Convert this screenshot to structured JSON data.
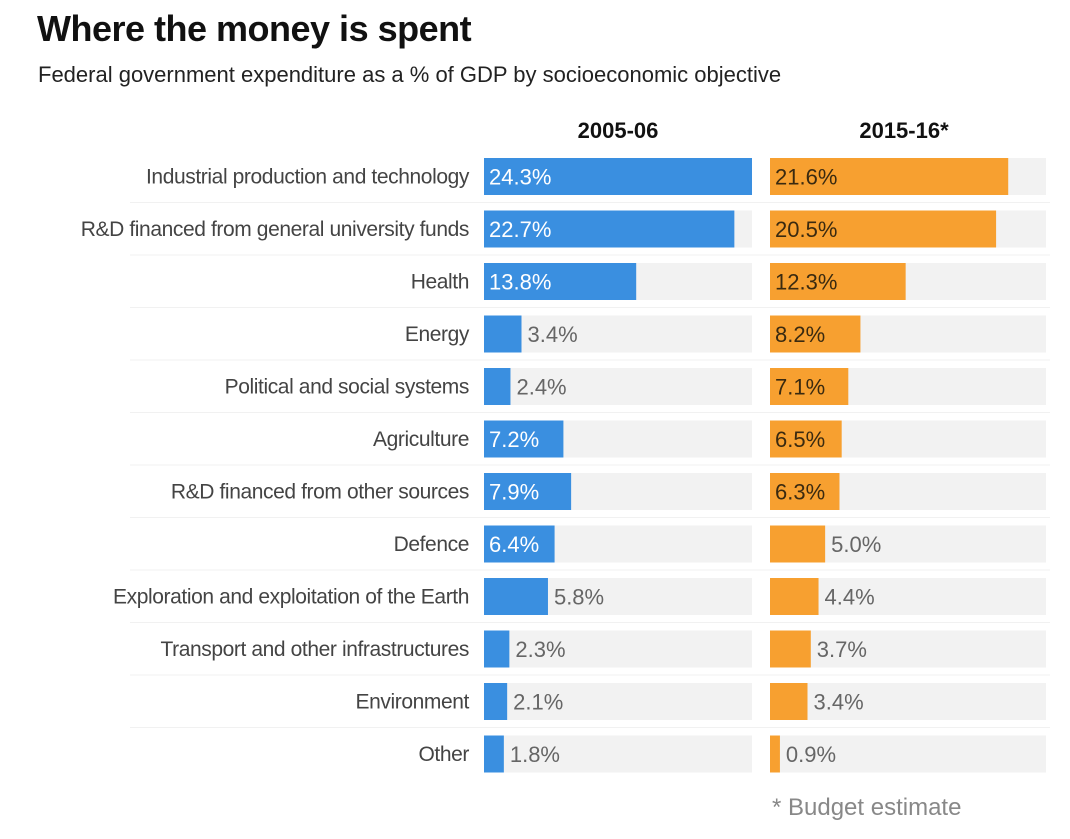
{
  "chart_data": {
    "type": "bar",
    "orientation": "horizontal",
    "title": "Where the money is spent",
    "subtitle": "Federal government expenditure as a % of GDP by socioeconomic objective",
    "categories": [
      "Industrial production and technology",
      "R&D financed from general university funds",
      "Health",
      "Energy",
      "Political and social systems",
      "Agriculture",
      "R&D financed from other sources",
      "Defence",
      "Exploration and exploitation of the Earth",
      "Transport and other infrastructures",
      "Environment",
      "Other"
    ],
    "series": [
      {
        "name": "2005-06",
        "color": "#3a8fe0",
        "values": [
          24.3,
          22.7,
          13.8,
          3.4,
          2.4,
          7.2,
          7.9,
          6.4,
          5.8,
          2.3,
          2.1,
          1.8
        ],
        "labels": [
          "24.3%",
          "22.7%",
          "13.8%",
          "3.4%",
          "2.4%",
          "7.2%",
          "7.9%",
          "6.4%",
          "5.8%",
          "2.3%",
          "2.1%",
          "1.8%"
        ]
      },
      {
        "name": "2015-16*",
        "color": "#f7a030",
        "values": [
          21.6,
          20.5,
          12.3,
          8.2,
          7.1,
          6.5,
          6.3,
          5.0,
          4.4,
          3.7,
          3.4,
          0.9
        ],
        "labels": [
          "21.6%",
          "20.5%",
          "12.3%",
          "8.2%",
          "7.1%",
          "6.5%",
          "6.3%",
          "5.0%",
          "4.4%",
          "3.7%",
          "3.4%",
          "0.9%"
        ]
      }
    ],
    "xlim": [
      0,
      24.3
    ],
    "track_color": "#f2f2f2",
    "footnote": "* Budget estimate",
    "legend": "column headers (top)",
    "grid": false
  }
}
